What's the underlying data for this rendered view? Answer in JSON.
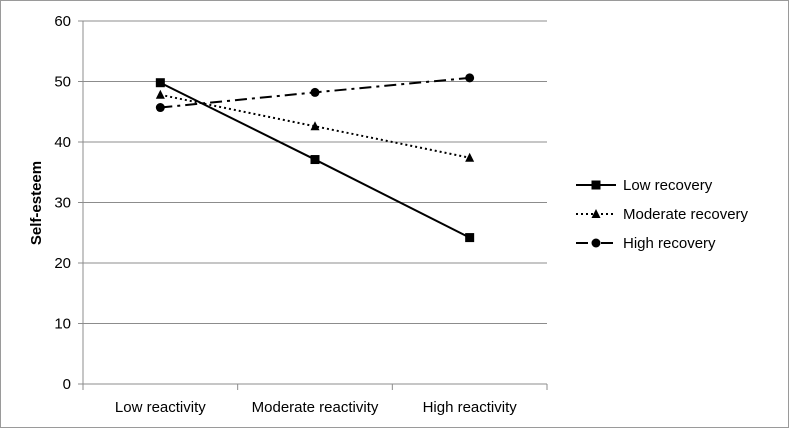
{
  "chart_data": {
    "type": "line",
    "title": "",
    "xlabel": "",
    "ylabel": "Self-esteem",
    "categories": [
      "Low reactivity",
      "Moderate reactivity",
      "High reactivity"
    ],
    "ylim": [
      0,
      60
    ],
    "yticks": [
      0,
      10,
      20,
      30,
      40,
      50,
      60
    ],
    "grid": true,
    "legend_position": "right",
    "series": [
      {
        "name": "Low recovery",
        "values": [
          49.8,
          37.1,
          24.2
        ],
        "line_style": "solid",
        "marker": "square",
        "color": "#000000"
      },
      {
        "name": "Moderate recovery",
        "values": [
          47.8,
          42.6,
          37.4
        ],
        "line_style": "dotted",
        "marker": "triangle",
        "color": "#000000"
      },
      {
        "name": "High recovery",
        "values": [
          45.7,
          48.2,
          50.6
        ],
        "line_style": "dash-dot",
        "marker": "circle",
        "color": "#000000"
      }
    ]
  }
}
